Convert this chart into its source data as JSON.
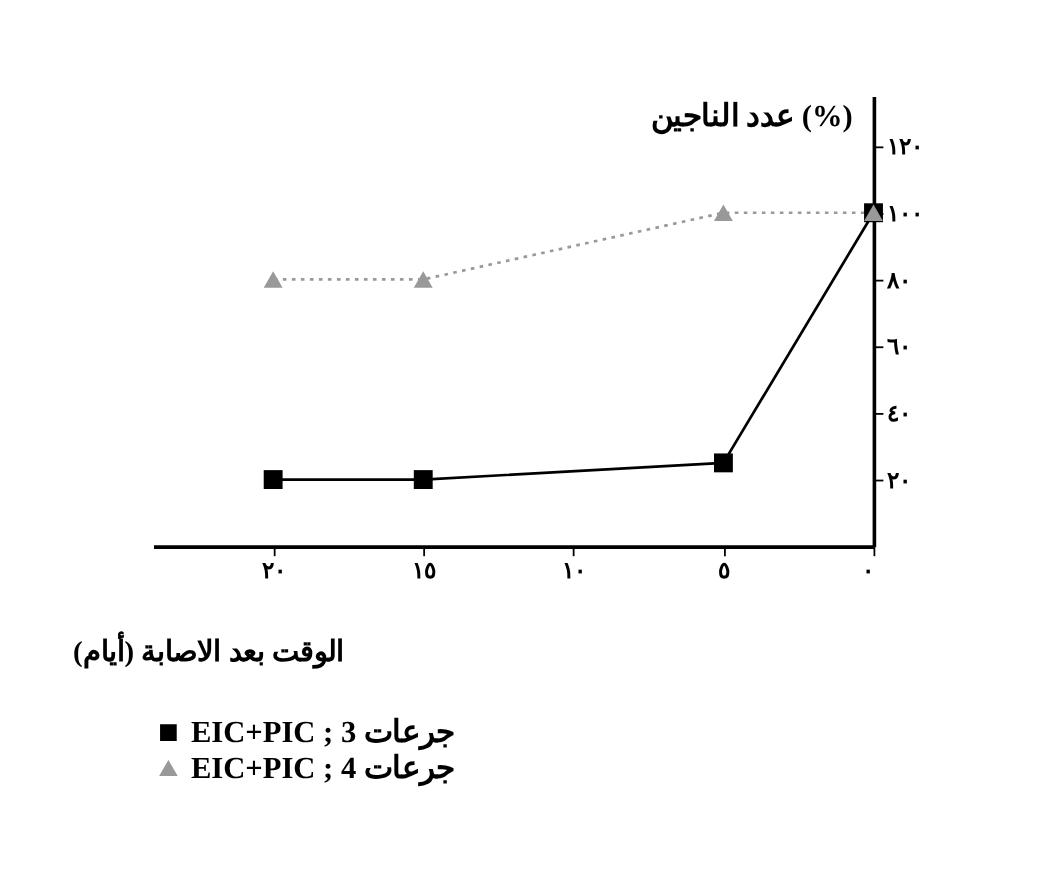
{
  "chart_data": {
    "type": "line",
    "xlabel": "الوقت بعد الاصابة (أيام)",
    "ylabel": "عدد الناجين (%)",
    "x": [
      0,
      5,
      15,
      20
    ],
    "series": [
      {
        "name": "EIC+PIC ; 3 جرعات",
        "color": "#000000",
        "values": [
          100,
          25,
          20,
          20
        ],
        "marker": "square",
        "line_style": "solid"
      },
      {
        "name": "EIC+PIC ; 4 جرعات",
        "color": "#999999",
        "values": [
          100,
          100,
          80,
          80
        ],
        "marker": "triangle",
        "line_style": "dotted"
      }
    ],
    "xlim": [
      24,
      0
    ],
    "ylim": [
      0,
      135
    ],
    "xticks": [
      {
        "value": 0,
        "label": "٠"
      },
      {
        "value": 5,
        "label": "٥"
      },
      {
        "value": 10,
        "label": "١٠"
      },
      {
        "value": 15,
        "label": "١٥"
      },
      {
        "value": 20,
        "label": "٢٠"
      }
    ],
    "yticks": [
      {
        "value": 20,
        "label": "٢٠"
      },
      {
        "value": 40,
        "label": "٤٠"
      },
      {
        "value": 60,
        "label": "٦٠"
      },
      {
        "value": 80,
        "label": "٨٠"
      },
      {
        "value": 100,
        "label": "١٠٠"
      },
      {
        "value": 120,
        "label": "١٢٠"
      }
    ],
    "grid": false,
    "legend": "bottom left"
  }
}
